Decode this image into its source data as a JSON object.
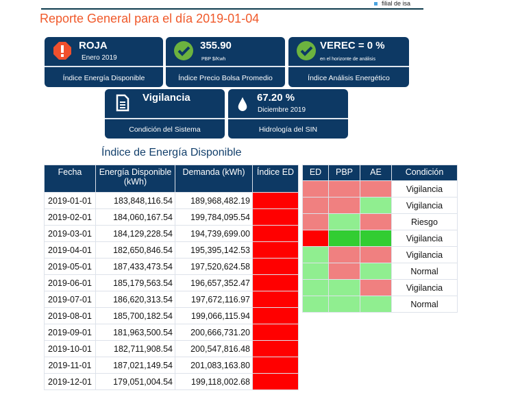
{
  "header": {
    "brand_note": "filial de isa",
    "title": "Reporte General para el día  2019-01-04"
  },
  "cards": [
    {
      "icon": "alert-octagon-icon",
      "value": "ROJA",
      "sub": "Enero 2019",
      "label": "Índice Energía Disponible"
    },
    {
      "icon": "check-circle-icon",
      "value": "355.90",
      "sub": "PBP $/Kwh",
      "label": "Índice Precio Bolsa Promedio"
    },
    {
      "icon": "check-circle-icon",
      "value": "VEREC = 0 %",
      "sub": "en el horizonte de análisis",
      "label": "Índice Análisis Energético"
    },
    {
      "icon": "document-icon",
      "value": "Vigilancia",
      "sub": "",
      "label": "Condición del Sistema"
    },
    {
      "icon": "water-drop-icon",
      "value": "67.20 %",
      "sub": "Diciembre 2019",
      "label": "Hidrología del SIN"
    }
  ],
  "energy_table": {
    "title": "Índice de Energía Disponible",
    "headers": [
      "Fecha",
      "Energía Disponible (kWh)",
      "Demanda (kWh)",
      "Índice ED"
    ],
    "rows": [
      [
        "2019-01-01",
        "183,848,116.54",
        "189,968,482.19"
      ],
      [
        "2019-02-01",
        "184,060,167.54",
        "199,784,095.54"
      ],
      [
        "2019-03-01",
        "184,129,228.54",
        "194,739,699.00"
      ],
      [
        "2019-04-01",
        "182,650,846.54",
        "195,395,142.53"
      ],
      [
        "2019-05-01",
        "187,433,473.54",
        "197,520,624.58"
      ],
      [
        "2019-06-01",
        "185,179,563.54",
        "196,657,352.47"
      ],
      [
        "2019-07-01",
        "186,620,313.54",
        "197,672,116.97"
      ],
      [
        "2019-08-01",
        "185,700,182.54",
        "199,066,115.94"
      ],
      [
        "2019-09-01",
        "181,963,500.54",
        "200,666,731.20"
      ],
      [
        "2019-10-01",
        "182,711,908.54",
        "200,547,816.48"
      ],
      [
        "2019-11-01",
        "187,021,149.54",
        "201,083,163.80"
      ],
      [
        "2019-12-01",
        "179,051,004.54",
        "199,118,002.68"
      ]
    ],
    "index_color": "#ff0000"
  },
  "condition_table": {
    "headers": [
      "ED",
      "PBP",
      "AE",
      "Condición"
    ],
    "rows": [
      {
        "ed": "lr",
        "pbp": "lr",
        "ae": "lr",
        "cond": "Vigilancia"
      },
      {
        "ed": "lr",
        "pbp": "lr",
        "ae": "lg",
        "cond": "Vigilancia"
      },
      {
        "ed": "lr",
        "pbp": "lg",
        "ae": "lr",
        "cond": "Riesgo"
      },
      {
        "ed": "r",
        "pbp": "g",
        "ae": "g",
        "cond": "Vigilancia"
      },
      {
        "ed": "lg",
        "pbp": "lr",
        "ae": "lr",
        "cond": "Vigilancia"
      },
      {
        "ed": "lg",
        "pbp": "lr",
        "ae": "lg",
        "cond": "Normal"
      },
      {
        "ed": "lg",
        "pbp": "lg",
        "ae": "lr",
        "cond": "Vigilancia"
      },
      {
        "ed": "lg",
        "pbp": "lg",
        "ae": "lg",
        "cond": "Normal"
      }
    ],
    "colors": {
      "lr": "#f08080",
      "lg": "#90ee90",
      "r": "#ff0000",
      "g": "#32cd32"
    }
  }
}
